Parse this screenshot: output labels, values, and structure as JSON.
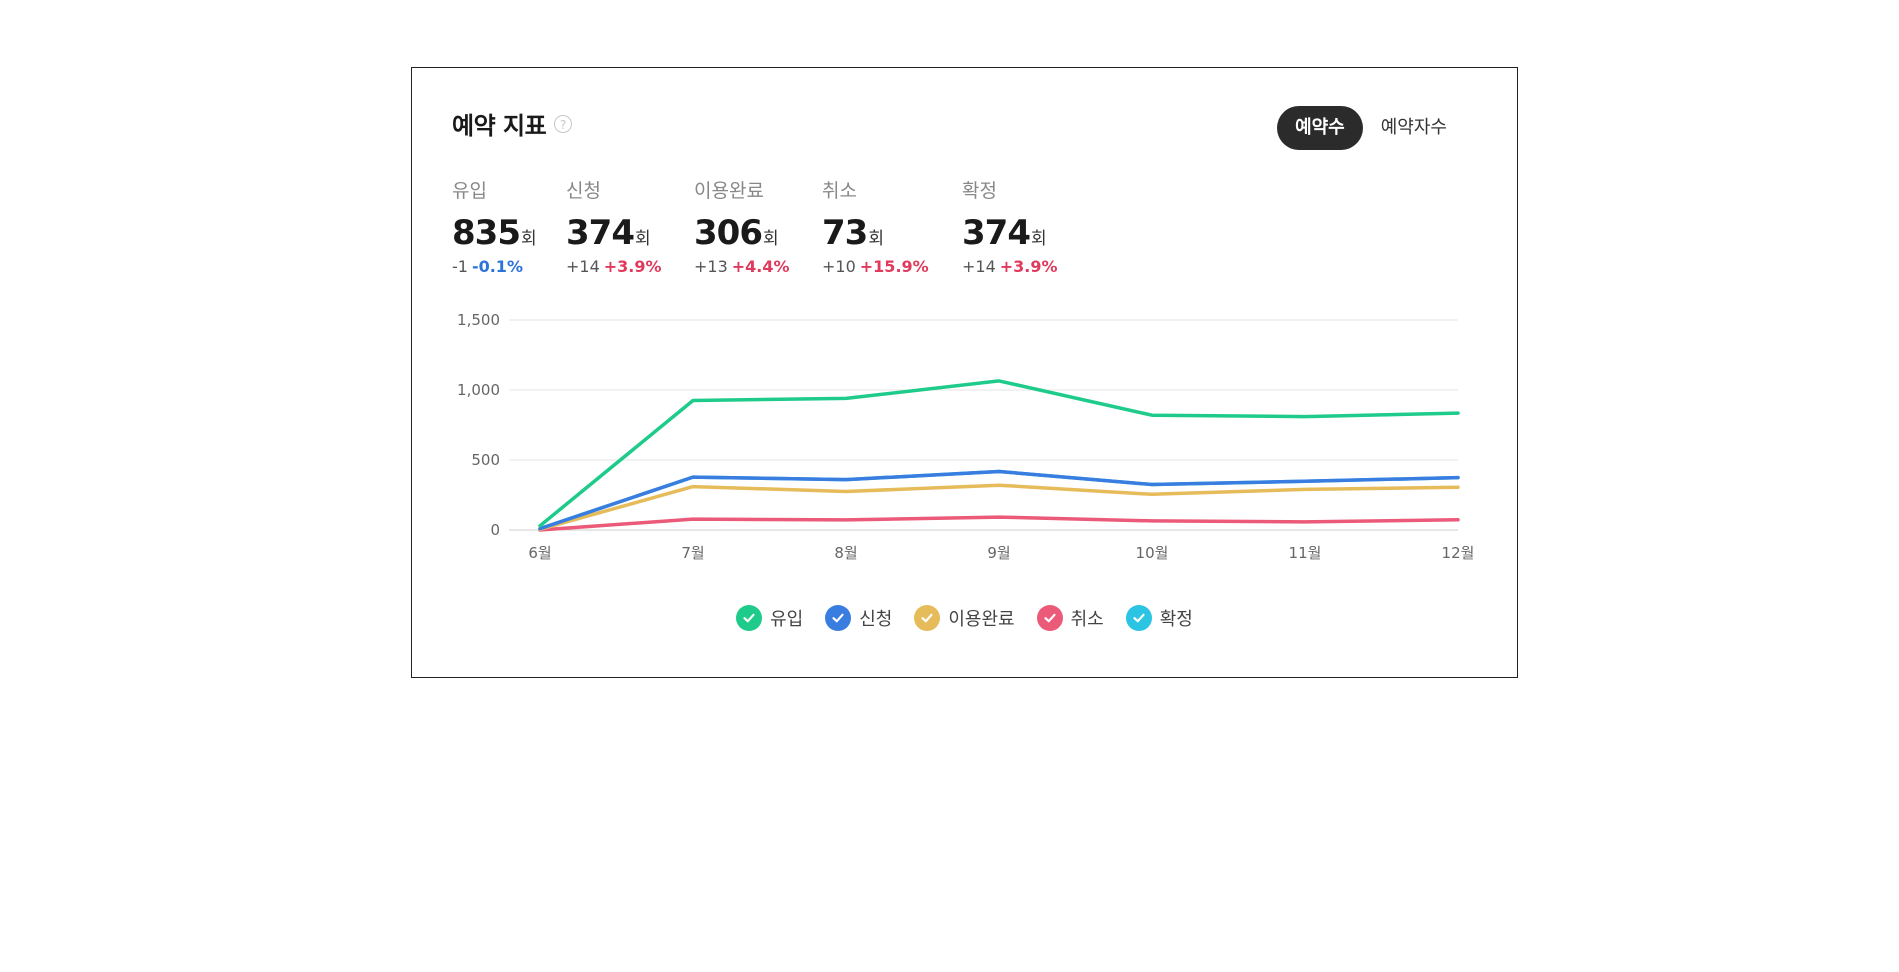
{
  "header": {
    "title": "예약 지표",
    "help_icon_glyph": "?",
    "toggle": [
      {
        "label": "예약수",
        "active": true
      },
      {
        "label": "예약자수",
        "active": false
      }
    ]
  },
  "metrics": [
    {
      "label": "유입",
      "value": "835",
      "unit": "회",
      "delta": "-1",
      "pct": "-0.1%",
      "trend": "down"
    },
    {
      "label": "신청",
      "value": "374",
      "unit": "회",
      "delta": "+14",
      "pct": "+3.9%",
      "trend": "up"
    },
    {
      "label": "이용완료",
      "value": "306",
      "unit": "회",
      "delta": "+13",
      "pct": "+4.4%",
      "trend": "up"
    },
    {
      "label": "취소",
      "value": "73",
      "unit": "회",
      "delta": "+10",
      "pct": "+15.9%",
      "trend": "up"
    },
    {
      "label": "확정",
      "value": "374",
      "unit": "회",
      "delta": "+14",
      "pct": "+3.9%",
      "trend": "up"
    }
  ],
  "chart_data": {
    "type": "line",
    "categories": [
      "6월",
      "7월",
      "8월",
      "9월",
      "10월",
      "11월",
      "12월"
    ],
    "ylim": [
      0,
      1500
    ],
    "yticks": [
      0,
      500,
      1000,
      1500
    ],
    "ytick_labels": [
      "0",
      "500",
      "1,000",
      "1,500"
    ],
    "grid": true,
    "legend_position": "bottom-center",
    "series": [
      {
        "name": "유입",
        "color": "#1ecb8a",
        "values": [
          30,
          925,
          940,
          1065,
          820,
          810,
          835
        ]
      },
      {
        "name": "신청",
        "color": "#3a7de0",
        "values": [
          10,
          378,
          360,
          418,
          325,
          348,
          374
        ]
      },
      {
        "name": "이용완료",
        "color": "#e6bb5a",
        "values": [
          5,
          310,
          275,
          320,
          255,
          290,
          306
        ]
      },
      {
        "name": "취소",
        "color": "#ec5a79",
        "values": [
          0,
          78,
          72,
          92,
          65,
          58,
          73
        ]
      },
      {
        "name": "확정",
        "color": "#2bc4e3",
        "values": [
          10,
          378,
          360,
          418,
          325,
          348,
          374
        ]
      }
    ]
  }
}
